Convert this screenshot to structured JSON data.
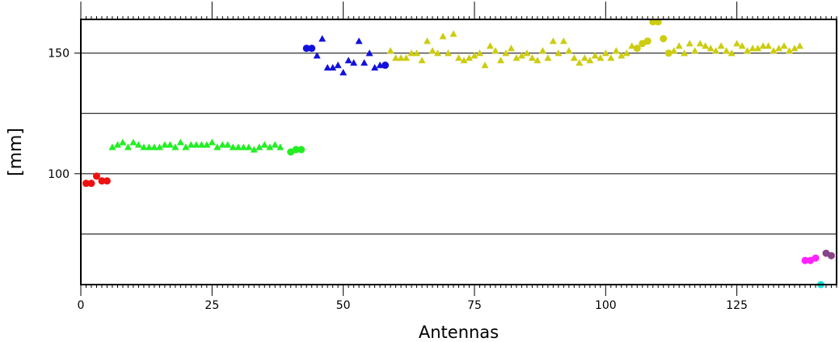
{
  "chart_data": {
    "type": "scatter",
    "title": "",
    "xlabel": "Antennas",
    "ylabel": "[mm]",
    "xlim": [
      0,
      144
    ],
    "ylim": [
      54,
      164
    ],
    "x_ticks": [
      0,
      25,
      50,
      75,
      100,
      125
    ],
    "x_tick_labels": [
      "0",
      "25",
      "50",
      "75",
      "100",
      "125"
    ],
    "y_ticks": [
      100,
      150
    ],
    "y_tick_labels": [
      "100",
      "150"
    ],
    "grid_y": [
      75,
      100,
      125,
      150
    ],
    "series": [
      {
        "color": "#ee1111",
        "marker": "circle",
        "points": [
          [
            1,
            96
          ],
          [
            2,
            96
          ],
          [
            3,
            99
          ],
          [
            4,
            97
          ],
          [
            5,
            97
          ]
        ]
      },
      {
        "color": "#22ee22",
        "marker": "triangle",
        "points": [
          [
            6,
            111
          ],
          [
            7,
            112
          ],
          [
            8,
            113
          ],
          [
            9,
            111
          ],
          [
            10,
            113
          ],
          [
            11,
            112
          ],
          [
            12,
            111
          ],
          [
            13,
            111
          ],
          [
            14,
            111
          ],
          [
            15,
            111
          ],
          [
            16,
            112
          ],
          [
            17,
            112
          ],
          [
            18,
            111
          ],
          [
            19,
            113
          ],
          [
            20,
            111
          ],
          [
            21,
            112
          ],
          [
            22,
            112
          ],
          [
            23,
            112
          ],
          [
            24,
            112
          ],
          [
            25,
            113
          ],
          [
            26,
            111
          ],
          [
            27,
            112
          ],
          [
            28,
            112
          ],
          [
            29,
            111
          ],
          [
            30,
            111
          ],
          [
            31,
            111
          ],
          [
            32,
            111
          ],
          [
            33,
            110
          ],
          [
            34,
            111
          ],
          [
            35,
            112
          ],
          [
            36,
            111
          ],
          [
            37,
            112
          ],
          [
            38,
            111
          ]
        ]
      },
      {
        "color": "#22ee22",
        "marker": "circle",
        "points": [
          [
            40,
            109
          ],
          [
            41,
            110
          ],
          [
            42,
            110
          ]
        ]
      },
      {
        "color": "#1111dd",
        "marker": "circle",
        "points": [
          [
            43,
            152
          ],
          [
            44,
            152
          ],
          [
            58,
            145
          ]
        ]
      },
      {
        "color": "#1111dd",
        "marker": "triangle",
        "points": [
          [
            45,
            149
          ],
          [
            46,
            156
          ],
          [
            47,
            144
          ],
          [
            48,
            144
          ],
          [
            49,
            145
          ],
          [
            50,
            142
          ],
          [
            51,
            147
          ],
          [
            52,
            146
          ],
          [
            53,
            155
          ],
          [
            54,
            146
          ],
          [
            55,
            150
          ],
          [
            56,
            144
          ],
          [
            57,
            145
          ]
        ]
      },
      {
        "color": "#cccc11",
        "marker": "triangle",
        "points": [
          [
            59,
            151
          ],
          [
            60,
            148
          ],
          [
            61,
            148
          ],
          [
            62,
            148
          ],
          [
            63,
            150
          ],
          [
            64,
            150
          ],
          [
            65,
            147
          ],
          [
            66,
            155
          ],
          [
            67,
            151
          ],
          [
            68,
            150
          ],
          [
            69,
            157
          ],
          [
            70,
            150
          ],
          [
            71,
            158
          ],
          [
            72,
            148
          ],
          [
            73,
            147
          ],
          [
            74,
            148
          ],
          [
            75,
            149
          ],
          [
            76,
            150
          ],
          [
            77,
            145
          ],
          [
            78,
            153
          ],
          [
            79,
            151
          ],
          [
            80,
            147
          ],
          [
            81,
            150
          ],
          [
            82,
            152
          ],
          [
            83,
            148
          ],
          [
            84,
            149
          ],
          [
            85,
            150
          ],
          [
            86,
            148
          ],
          [
            87,
            147
          ],
          [
            88,
            151
          ],
          [
            89,
            148
          ],
          [
            90,
            155
          ],
          [
            91,
            150
          ],
          [
            92,
            155
          ],
          [
            93,
            151
          ],
          [
            94,
            148
          ],
          [
            95,
            146
          ],
          [
            96,
            148
          ],
          [
            97,
            147
          ],
          [
            98,
            149
          ],
          [
            99,
            148
          ],
          [
            100,
            150
          ],
          [
            101,
            148
          ],
          [
            102,
            151
          ],
          [
            103,
            149
          ],
          [
            104,
            150
          ],
          [
            105,
            153
          ],
          [
            113,
            151
          ],
          [
            114,
            153
          ],
          [
            115,
            150
          ],
          [
            116,
            154
          ],
          [
            117,
            151
          ],
          [
            118,
            154
          ],
          [
            119,
            153
          ],
          [
            120,
            152
          ],
          [
            121,
            151
          ],
          [
            122,
            153
          ],
          [
            123,
            151
          ],
          [
            124,
            150
          ],
          [
            125,
            154
          ],
          [
            126,
            153
          ],
          [
            127,
            151
          ],
          [
            128,
            152
          ],
          [
            129,
            152
          ],
          [
            130,
            153
          ],
          [
            131,
            153
          ],
          [
            132,
            151
          ],
          [
            133,
            152
          ],
          [
            134,
            153
          ],
          [
            135,
            151
          ],
          [
            136,
            152
          ],
          [
            137,
            153
          ]
        ]
      },
      {
        "color": "#cccc11",
        "marker": "circle",
        "points": [
          [
            106,
            152
          ],
          [
            107,
            154
          ],
          [
            108,
            155
          ],
          [
            109,
            163
          ],
          [
            110,
            163
          ],
          [
            111,
            156
          ],
          [
            112,
            150
          ]
        ]
      },
      {
        "color": "#ff22ff",
        "marker": "circle",
        "points": [
          [
            138,
            64
          ],
          [
            139,
            64
          ],
          [
            140,
            65
          ]
        ]
      },
      {
        "color": "#11dddd",
        "marker": "circle",
        "points": [
          [
            141,
            54
          ]
        ]
      },
      {
        "color": "#884488",
        "marker": "circle",
        "points": [
          [
            142,
            67
          ],
          [
            143,
            66
          ]
        ]
      }
    ]
  }
}
